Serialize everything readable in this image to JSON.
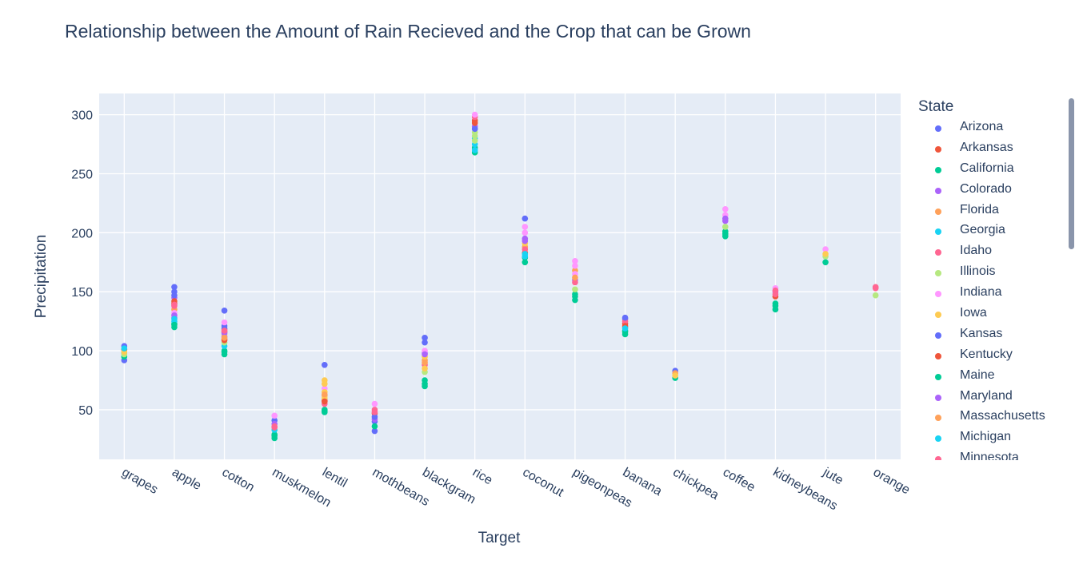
{
  "chart_data": {
    "type": "scatter",
    "title": "Relationship between the Amount of Rain Recieved and the Crop that can be Grown",
    "xlabel": "Target",
    "ylabel": "Precipitation",
    "categories": [
      "grapes",
      "apple",
      "cotton",
      "muskmelon",
      "lentil",
      "mothbeans",
      "blackgram",
      "rice",
      "coconut",
      "pigeonpeas",
      "banana",
      "chickpea",
      "coffee",
      "kidneybeans",
      "jute",
      "orange"
    ],
    "ylim": [
      8,
      318
    ],
    "yticks": [
      50,
      100,
      150,
      200,
      250,
      300
    ],
    "grid": true,
    "plot_background": "#e5ecf6",
    "legend_title": "State",
    "legend_position": "right",
    "series": [
      {
        "name": "Arizona",
        "color": "#636efa",
        "points": [
          [
            "grapes",
            92
          ],
          [
            "grapes",
            104
          ],
          [
            "apple",
            154
          ],
          [
            "apple",
            150
          ],
          [
            "cotton",
            134
          ],
          [
            "cotton",
            121
          ],
          [
            "muskmelon",
            41
          ],
          [
            "lentil",
            88
          ],
          [
            "mothbeans",
            32
          ],
          [
            "mothbeans",
            40
          ],
          [
            "blackgram",
            111
          ],
          [
            "blackgram",
            107
          ],
          [
            "coconut",
            212
          ],
          [
            "banana",
            127
          ],
          [
            "chickpea",
            83
          ]
        ]
      },
      {
        "name": "Arkansas",
        "color": "#ef553b",
        "points": [
          [
            "grapes",
            101
          ],
          [
            "apple",
            140
          ],
          [
            "cotton",
            116
          ],
          [
            "lentil",
            58
          ],
          [
            "mothbeans",
            47
          ],
          [
            "rice",
            295
          ],
          [
            "coconut",
            183
          ],
          [
            "banana",
            123
          ],
          [
            "kidneybeans",
            146
          ]
        ]
      },
      {
        "name": "California",
        "color": "#00cc96",
        "points": [
          [
            "grapes",
            95
          ],
          [
            "apple",
            120
          ],
          [
            "apple",
            123
          ],
          [
            "cotton",
            97
          ],
          [
            "cotton",
            100
          ],
          [
            "muskmelon",
            26
          ],
          [
            "muskmelon",
            29
          ],
          [
            "lentil",
            48
          ],
          [
            "lentil",
            50
          ],
          [
            "mothbeans",
            36
          ],
          [
            "blackgram",
            70
          ],
          [
            "blackgram",
            75
          ],
          [
            "rice",
            268
          ],
          [
            "rice",
            272
          ],
          [
            "coconut",
            175
          ],
          [
            "coconut",
            179
          ],
          [
            "pigeonpeas",
            143
          ],
          [
            "pigeonpeas",
            148
          ],
          [
            "banana",
            114
          ],
          [
            "banana",
            117
          ],
          [
            "chickpea",
            77
          ],
          [
            "coffee",
            197
          ],
          [
            "coffee",
            201
          ],
          [
            "kidneybeans",
            135
          ],
          [
            "kidneybeans",
            140
          ],
          [
            "jute",
            175
          ]
        ]
      },
      {
        "name": "Colorado",
        "color": "#ab63fa",
        "points": [
          [
            "apple",
            128
          ],
          [
            "apple",
            145
          ],
          [
            "cotton",
            112
          ],
          [
            "muskmelon",
            38
          ],
          [
            "mothbeans",
            42
          ],
          [
            "blackgram",
            98
          ],
          [
            "rice",
            290
          ],
          [
            "coconut",
            195
          ],
          [
            "pigeonpeas",
            160
          ],
          [
            "coffee",
            210
          ],
          [
            "kidneybeans",
            150
          ]
        ]
      },
      {
        "name": "Florida",
        "color": "#ffa15a",
        "points": [
          [
            "apple",
            135
          ],
          [
            "cotton",
            110
          ],
          [
            "lentil",
            62
          ],
          [
            "blackgram",
            92
          ],
          [
            "coconut",
            188
          ],
          [
            "pigeonpeas",
            168
          ],
          [
            "chickpea",
            81
          ]
        ]
      },
      {
        "name": "Georgia",
        "color": "#19d3f3",
        "points": [
          [
            "grapes",
            98
          ],
          [
            "apple",
            125
          ],
          [
            "cotton",
            104
          ],
          [
            "muskmelon",
            33
          ],
          [
            "rice",
            275
          ],
          [
            "rice",
            280
          ],
          [
            "coconut",
            180
          ],
          [
            "banana",
            120
          ]
        ]
      },
      {
        "name": "Idaho",
        "color": "#ff6692",
        "points": [
          [
            "apple",
            138
          ],
          [
            "cotton",
            118
          ],
          [
            "muskmelon",
            36
          ],
          [
            "lentil",
            55
          ],
          [
            "mothbeans",
            50
          ],
          [
            "blackgram",
            88
          ],
          [
            "rice",
            298
          ],
          [
            "coconut",
            186
          ],
          [
            "pigeonpeas",
            158
          ],
          [
            "banana",
            125
          ],
          [
            "kidneybeans",
            148
          ],
          [
            "orange",
            154
          ]
        ]
      },
      {
        "name": "Illinois",
        "color": "#b6e880",
        "points": [
          [
            "grapes",
            97
          ],
          [
            "cotton",
            107
          ],
          [
            "rice",
            285
          ],
          [
            "rice",
            278
          ],
          [
            "rice",
            282
          ],
          [
            "blackgram",
            82
          ],
          [
            "pigeonpeas",
            152
          ],
          [
            "coffee",
            205
          ],
          [
            "jute",
            180
          ],
          [
            "orange",
            147
          ]
        ]
      },
      {
        "name": "Indiana",
        "color": "#ff97ff",
        "points": [
          [
            "apple",
            132
          ],
          [
            "cotton",
            124
          ],
          [
            "muskmelon",
            45
          ],
          [
            "lentil",
            68
          ],
          [
            "mothbeans",
            55
          ],
          [
            "blackgram",
            100
          ],
          [
            "rice",
            300
          ],
          [
            "coconut",
            205
          ],
          [
            "coconut",
            200
          ],
          [
            "pigeonpeas",
            176
          ],
          [
            "pigeonpeas",
            172
          ],
          [
            "pigeonpeas",
            165
          ],
          [
            "coffee",
            220
          ],
          [
            "coffee",
            215
          ],
          [
            "kidneybeans",
            153
          ],
          [
            "jute",
            186
          ]
        ]
      },
      {
        "name": "Iowa",
        "color": "#fecb52",
        "points": [
          [
            "grapes",
            99
          ],
          [
            "cotton",
            114
          ],
          [
            "lentil",
            75
          ],
          [
            "lentil",
            72
          ],
          [
            "lentil",
            65
          ],
          [
            "lentil",
            60
          ],
          [
            "blackgram",
            95
          ],
          [
            "blackgram",
            85
          ],
          [
            "coconut",
            191
          ],
          [
            "chickpea",
            79
          ],
          [
            "jute",
            182
          ]
        ]
      },
      {
        "name": "Kansas",
        "color": "#636efa",
        "points": [
          [
            "apple",
            147
          ],
          [
            "cotton",
            119
          ],
          [
            "mothbeans",
            44
          ],
          [
            "rice",
            288
          ],
          [
            "banana",
            128
          ]
        ]
      },
      {
        "name": "Kentucky",
        "color": "#ef553b",
        "points": [
          [
            "apple",
            142
          ],
          [
            "cotton",
            109
          ],
          [
            "lentil",
            57
          ],
          [
            "rice",
            293
          ],
          [
            "banana",
            121
          ]
        ]
      },
      {
        "name": "Maine",
        "color": "#00cc96",
        "points": [
          [
            "apple",
            122
          ],
          [
            "cotton",
            99
          ],
          [
            "muskmelon",
            28
          ],
          [
            "lentil",
            49
          ],
          [
            "blackgram",
            72
          ],
          [
            "pigeonpeas",
            146
          ],
          [
            "banana",
            116
          ],
          [
            "coffee",
            199
          ],
          [
            "kidneybeans",
            138
          ]
        ]
      },
      {
        "name": "Maryland",
        "color": "#ab63fa",
        "points": [
          [
            "apple",
            130
          ],
          [
            "cotton",
            115
          ],
          [
            "blackgram",
            97
          ],
          [
            "coconut",
            193
          ],
          [
            "coffee",
            212
          ]
        ]
      },
      {
        "name": "Massachusetts",
        "color": "#ffa15a",
        "points": [
          [
            "cotton",
            111
          ],
          [
            "lentil",
            63
          ],
          [
            "blackgram",
            90
          ],
          [
            "pigeonpeas",
            162
          ]
        ]
      },
      {
        "name": "Michigan",
        "color": "#19d3f3",
        "points": [
          [
            "grapes",
            102
          ],
          [
            "apple",
            127
          ],
          [
            "rice",
            270
          ],
          [
            "coconut",
            182
          ],
          [
            "banana",
            119
          ]
        ]
      },
      {
        "name": "Minnesota",
        "color": "#ff6692",
        "points": [
          [
            "apple",
            139
          ],
          [
            "cotton",
            117
          ],
          [
            "muskmelon",
            35
          ],
          [
            "mothbeans",
            48
          ],
          [
            "kidneybeans",
            151
          ],
          [
            "orange",
            153
          ]
        ]
      }
    ]
  }
}
